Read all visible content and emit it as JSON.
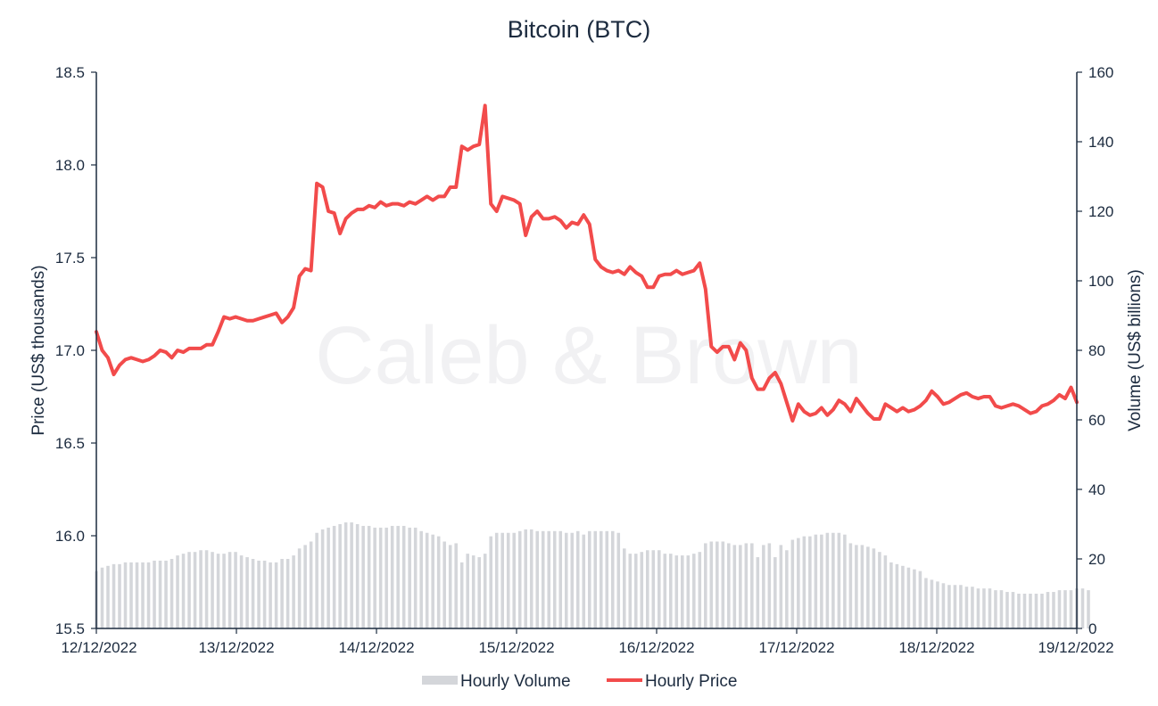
{
  "chart_data": {
    "type": "bar+line",
    "title": "Bitcoin (BTC)",
    "watermark": "Caleb & Brown",
    "x_tick_labels": [
      "12/12/2022",
      "13/12/2022",
      "14/12/2022",
      "15/12/2022",
      "16/12/2022",
      "17/12/2022",
      "18/12/2022",
      "19/12/2022"
    ],
    "y_left": {
      "label": "Price (US$ thousands)",
      "range": [
        15.5,
        18.5
      ],
      "ticks": [
        "15.5",
        "16.0",
        "16.5",
        "17.0",
        "17.5",
        "18.0",
        "18.5"
      ]
    },
    "y_right": {
      "label": "Volume (US$ billions)",
      "range": [
        0,
        160
      ],
      "ticks": [
        "0",
        "20",
        "40",
        "60",
        "80",
        "100",
        "120",
        "140",
        "160"
      ]
    },
    "legend": {
      "placement": "bottom",
      "volume_label": "Hourly Volume",
      "price_label": "Hourly Price"
    },
    "colors": {
      "price": "#f24b4b",
      "volume": "#d4d6da",
      "text": "#1c2b3f"
    },
    "series": [
      {
        "name": "Hourly Price",
        "kind": "line",
        "axis": "left",
        "values": [
          17.1,
          17.0,
          16.96,
          16.87,
          16.92,
          16.95,
          16.96,
          16.95,
          16.94,
          16.95,
          16.97,
          17.0,
          16.99,
          16.96,
          17.0,
          16.99,
          17.01,
          17.01,
          17.01,
          17.03,
          17.03,
          17.1,
          17.18,
          17.17,
          17.18,
          17.17,
          17.16,
          17.16,
          17.17,
          17.18,
          17.19,
          17.2,
          17.15,
          17.18,
          17.23,
          17.4,
          17.44,
          17.43,
          17.9,
          17.88,
          17.75,
          17.74,
          17.63,
          17.71,
          17.74,
          17.76,
          17.76,
          17.78,
          17.77,
          17.8,
          17.78,
          17.79,
          17.79,
          17.78,
          17.8,
          17.79,
          17.81,
          17.83,
          17.81,
          17.83,
          17.83,
          17.88,
          17.88,
          18.1,
          18.08,
          18.1,
          18.11,
          18.32,
          17.79,
          17.75,
          17.83,
          17.82,
          17.81,
          17.79,
          17.62,
          17.72,
          17.75,
          17.71,
          17.71,
          17.72,
          17.7,
          17.66,
          17.69,
          17.68,
          17.73,
          17.68,
          17.49,
          17.45,
          17.43,
          17.42,
          17.43,
          17.41,
          17.45,
          17.42,
          17.4,
          17.34,
          17.34,
          17.4,
          17.41,
          17.41,
          17.43,
          17.41,
          17.42,
          17.43,
          17.47,
          17.33,
          17.02,
          16.99,
          17.02,
          17.02,
          16.95,
          17.04,
          17.0,
          16.85,
          16.79,
          16.79,
          16.85,
          16.88,
          16.82,
          16.72,
          16.62,
          16.71,
          16.67,
          16.65,
          16.66,
          16.69,
          16.65,
          16.68,
          16.73,
          16.71,
          16.67,
          16.74,
          16.7,
          16.66,
          16.63,
          16.63,
          16.71,
          16.69,
          16.67,
          16.69,
          16.67,
          16.68,
          16.7,
          16.73,
          16.78,
          16.75,
          16.71,
          16.72,
          16.74,
          16.76,
          16.77,
          16.75,
          16.74,
          16.75,
          16.75,
          16.7,
          16.69,
          16.7,
          16.71,
          16.7,
          16.68,
          16.66,
          16.67,
          16.7,
          16.71,
          16.73,
          16.76,
          16.74,
          16.8,
          16.72
        ]
      },
      {
        "name": "Hourly Volume",
        "kind": "bar",
        "axis": "right",
        "values": [
          16.5,
          17.5,
          18.0,
          18.5,
          18.5,
          19.0,
          19.0,
          19.0,
          19.0,
          19.0,
          19.5,
          19.5,
          19.5,
          20.0,
          21.0,
          21.5,
          22.0,
          22.0,
          22.5,
          22.5,
          22.0,
          21.5,
          21.5,
          22.0,
          22.0,
          21.0,
          20.5,
          20.0,
          19.5,
          19.5,
          19.0,
          19.0,
          20.0,
          20.0,
          21.0,
          23.0,
          24.0,
          25.0,
          27.5,
          28.5,
          29.0,
          29.5,
          30.0,
          30.5,
          30.5,
          30.0,
          29.5,
          29.5,
          29.0,
          29.0,
          29.0,
          29.5,
          29.5,
          29.5,
          29.0,
          29.0,
          28.0,
          27.5,
          27.0,
          26.5,
          25.0,
          24.0,
          24.5,
          19.0,
          21.5,
          21.0,
          20.5,
          21.5,
          26.5,
          27.5,
          27.5,
          27.5,
          27.5,
          28.0,
          28.5,
          28.5,
          28.0,
          28.0,
          28.0,
          28.0,
          28.0,
          27.5,
          27.5,
          28.0,
          27.0,
          28.0,
          28.0,
          28.0,
          28.0,
          28.0,
          27.5,
          23.0,
          21.5,
          21.5,
          22.0,
          22.5,
          22.5,
          22.5,
          21.5,
          21.5,
          21.0,
          21.0,
          21.0,
          21.5,
          22.0,
          24.5,
          25.0,
          25.0,
          25.0,
          24.5,
          24.0,
          24.0,
          24.5,
          24.5,
          20.5,
          24.0,
          24.5,
          20.5,
          24.0,
          22.5,
          25.5,
          26.0,
          26.5,
          26.5,
          27.0,
          27.0,
          27.5,
          27.5,
          27.5,
          27.0,
          24.5,
          24.0,
          24.0,
          23.5,
          23.0,
          22.0,
          21.0,
          19.0,
          18.5,
          18.0,
          17.5,
          17.0,
          16.5,
          14.5,
          14.0,
          13.5,
          13.0,
          12.5,
          12.5,
          12.5,
          12.0,
          12.0,
          11.5,
          11.5,
          11.5,
          11.0,
          11.0,
          10.5,
          10.5,
          10.0,
          10.0,
          10.0,
          10.0,
          10.0,
          10.5,
          10.5,
          11.0,
          11.0,
          11.0,
          11.5,
          11.5,
          11.0
        ]
      }
    ]
  }
}
